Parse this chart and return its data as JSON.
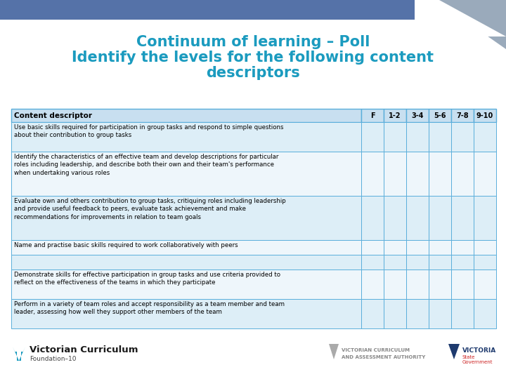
{
  "title_line1": "Continuum of learning – Poll",
  "title_line2": "Identify the levels for the following content",
  "title_line3": "descriptors",
  "title_color": "#1b9bbf",
  "background_color": "#ffffff",
  "header_bg": "#c8dff0",
  "row_bg_light": "#ddeef7",
  "row_bg_white": "#eef6fb",
  "border_color": "#5aaedb",
  "top_bar_color": "#5572a8",
  "top_bar_gray": "#9aaabb",
  "col_header": "Content descriptor",
  "level_headers": [
    "F",
    "1-2",
    "3-4",
    "5-6",
    "7-8",
    "9-10"
  ],
  "rows": [
    "Use basic skills required for participation in group tasks and respond to simple questions\nabout their contribution to group tasks",
    "Identify the characteristics of an effective team and develop descriptions for particular\nroles including leadership, and describe both their own and their team's performance\nwhen undertaking various roles",
    "Evaluate own and others contribution to group tasks, critiquing roles including leadership\nand provide useful feedback to peers, evaluate task achievement and make\nrecommendations for improvements in relation to team goals",
    "Name and practise basic skills required to work collaboratively with peers",
    "",
    "Demonstrate skills for effective participation in group tasks and use criteria provided to\nreflect on the effectiveness of the teams in which they participate",
    "Perform in a variety of team roles and accept responsibility as a team member and team\nleader, assessing how well they support other members of the team"
  ],
  "row_line_counts": [
    2,
    3,
    3,
    1,
    1,
    2,
    2
  ],
  "figwidth": 7.2,
  "figheight": 5.4,
  "dpi": 100
}
